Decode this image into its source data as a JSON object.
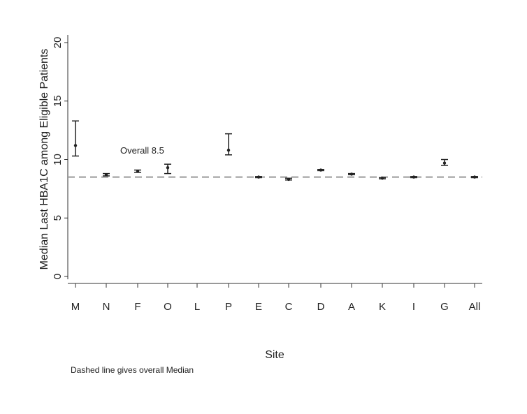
{
  "chart_data": {
    "type": "scatter",
    "subtype": "median-with-error-bars",
    "xlabel": "Site",
    "ylabel": "Median Last HBA1C among Eligible Patients",
    "ylim": [
      0,
      20
    ],
    "yticks": [
      0,
      5,
      10,
      15,
      20
    ],
    "categories": [
      "M",
      "N",
      "F",
      "O",
      "L",
      "P",
      "E",
      "C",
      "D",
      "A",
      "K",
      "I",
      "G",
      "All"
    ],
    "series": [
      {
        "values": [
          11.2,
          8.7,
          9.0,
          9.3,
          null,
          10.8,
          8.5,
          8.3,
          9.1,
          8.75,
          8.4,
          8.5,
          9.7,
          8.5
        ],
        "lower": [
          10.3,
          8.6,
          8.9,
          8.8,
          null,
          10.4,
          8.45,
          8.25,
          9.05,
          8.7,
          8.35,
          8.45,
          9.5,
          8.45
        ],
        "upper": [
          13.3,
          8.8,
          9.1,
          9.6,
          null,
          12.2,
          8.55,
          8.4,
          9.15,
          8.8,
          8.45,
          8.55,
          10.0,
          8.55
        ]
      }
    ],
    "reference_line": {
      "value": 8.5,
      "style": "dashed"
    },
    "annotation": "Overall 8.5",
    "footnote": "Dashed line gives overall Median",
    "colors": {
      "marks": "#222222",
      "axis": "#333333",
      "reference_line": "#999999"
    }
  }
}
